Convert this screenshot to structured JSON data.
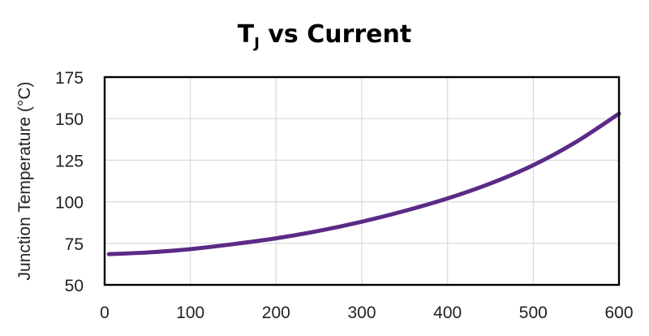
{
  "chart_data": {
    "type": "line",
    "title_main": "T",
    "title_sub": "J",
    "title_rest": " vs Current",
    "xlabel": "",
    "ylabel": "Junction Temperature (°C)",
    "xlim": [
      0,
      600
    ],
    "ylim": [
      50,
      175
    ],
    "xticks": [
      0,
      100,
      200,
      300,
      400,
      500,
      600
    ],
    "yticks": [
      50,
      75,
      100,
      125,
      150,
      175
    ],
    "grid": true,
    "legend": "none",
    "series": [
      {
        "color": "#5b2a86",
        "x": [
          5,
          50,
          100,
          150,
          200,
          250,
          300,
          350,
          400,
          450,
          500,
          550,
          600
        ],
        "y": [
          68.5,
          69.5,
          71.5,
          74.5,
          78,
          82.5,
          88,
          94.5,
          102,
          111,
          122,
          136,
          153
        ]
      }
    ]
  }
}
